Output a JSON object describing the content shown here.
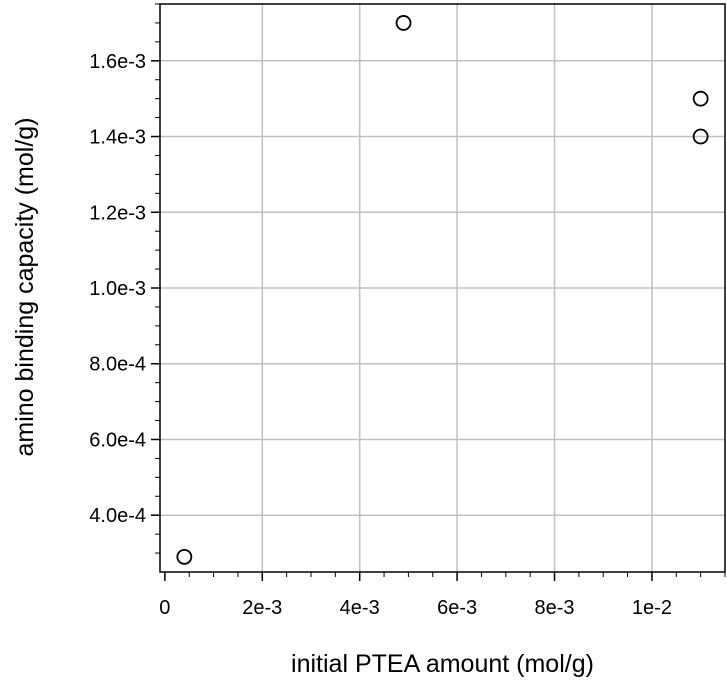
{
  "chart_data": {
    "type": "scatter",
    "title": "",
    "xlabel": "initial PTEA amount (mol/g)",
    "ylabel": "amino binding capacity (mol/g)",
    "xlim": [
      -0.0001,
      0.0115
    ],
    "ylim": [
      0.00025,
      0.00175
    ],
    "xticks": [
      0,
      0.002,
      0.004,
      0.006,
      0.008,
      0.01
    ],
    "xtick_labels": [
      "0",
      "2e-3",
      "4e-3",
      "6e-3",
      "8e-3",
      "1e-2"
    ],
    "yticks": [
      0.0004,
      0.0006,
      0.0008,
      0.001,
      0.0012,
      0.0014,
      0.0016
    ],
    "ytick_labels": [
      "4.0e-4",
      "6.0e-4",
      "8.0e-4",
      "1.0e-3",
      "1.2e-3",
      "1.4e-3",
      "1.6e-3"
    ],
    "grid": true,
    "marker": "open-circle",
    "colors": {
      "marker": "#000000",
      "grid": "#c0c0c0",
      "axis": "#000000"
    },
    "series": [
      {
        "points": [
          {
            "x": 0.0004,
            "y": 0.00029
          },
          {
            "x": 0.0049,
            "y": 0.0017
          },
          {
            "x": 0.011,
            "y": 0.0015
          },
          {
            "x": 0.011,
            "y": 0.0014
          }
        ]
      }
    ]
  }
}
